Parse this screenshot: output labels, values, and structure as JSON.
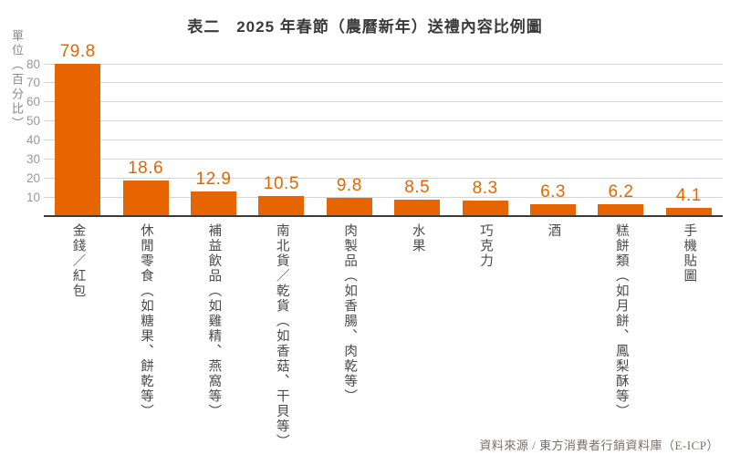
{
  "title": "表二　2025 年春節（農曆新年）送禮內容比例圖",
  "y_unit_label": "單位（百分比）",
  "source_note": "資料來源 / 東方消費者行銷資料庫（E-ICP）",
  "colors": {
    "bar": "#e76500",
    "value_label": "#e76500",
    "gridline": "#d4d4d4",
    "axis_line": "#3b3b3b",
    "title_text": "#3a3a3a",
    "tick_text": "#999999",
    "category_text": "#4a4a4a",
    "source_text": "#7b6f66"
  },
  "chart_data": {
    "type": "bar",
    "title": "表二　2025 年春節（農曆新年）送禮內容比例圖",
    "categories": [
      "金錢／紅包",
      "休閒零食（如糖果、餅乾等）",
      "補益飲品（如雞精、燕窩等）",
      "南北貨／乾貨（如香菇、干貝等）",
      "肉製品（如香腸、肉乾等）",
      "水果",
      "巧克力",
      "酒",
      "糕餅類（如月餅、鳳梨酥等）",
      "手機貼圖"
    ],
    "values": [
      79.8,
      18.6,
      12.9,
      10.5,
      9.8,
      8.5,
      8.3,
      6.3,
      6.2,
      4.1
    ],
    "xlabel": "",
    "ylabel": "單位（百分比）",
    "ylim": [
      0,
      80
    ],
    "yticks": [
      10,
      20,
      30,
      40,
      50,
      60,
      70,
      80
    ],
    "grid": true,
    "legend": false,
    "value_labels_shown": true
  }
}
